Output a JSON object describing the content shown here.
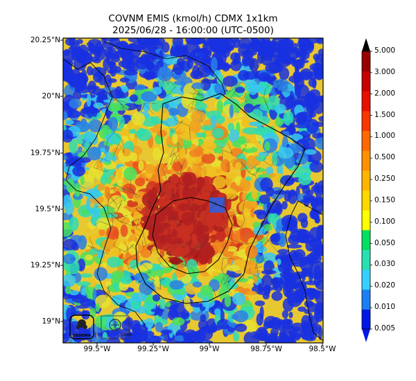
{
  "title_line1": "COVNM EMIS (kmol/h) CDMX 1x1km",
  "title_line2": "2025/06/28 - 16:00:00 (UTC-0500)",
  "lat_ticks": [
    "20.25°N",
    "20°N",
    "19.75°N",
    "19.5°N",
    "19.25°N",
    "19°N"
  ],
  "lon_ticks": [
    "99.5°W",
    "99.25°W",
    "99°W",
    "98.75°W",
    "98.5°W"
  ],
  "colorbar": {
    "labels": [
      "5.000",
      "3.000",
      "2.000",
      "1.500",
      "1.000",
      "0.500",
      "0.250",
      "0.150",
      "0.100",
      "0.050",
      "0.030",
      "0.020",
      "0.010",
      "0.005"
    ],
    "colors": [
      "#0018e6",
      "#1a7ff2",
      "#35d0ff",
      "#28e0b0",
      "#00e060",
      "#ffff00",
      "#ffd800",
      "#ffb400",
      "#ff9000",
      "#ff6a00",
      "#f83800",
      "#e81000",
      "#c80000",
      "#980000"
    ],
    "extend_low_color": "#0018e6",
    "extend_high_color": "#000000"
  },
  "logos": {
    "left": "SEDEMA",
    "right": "CDMX"
  }
}
